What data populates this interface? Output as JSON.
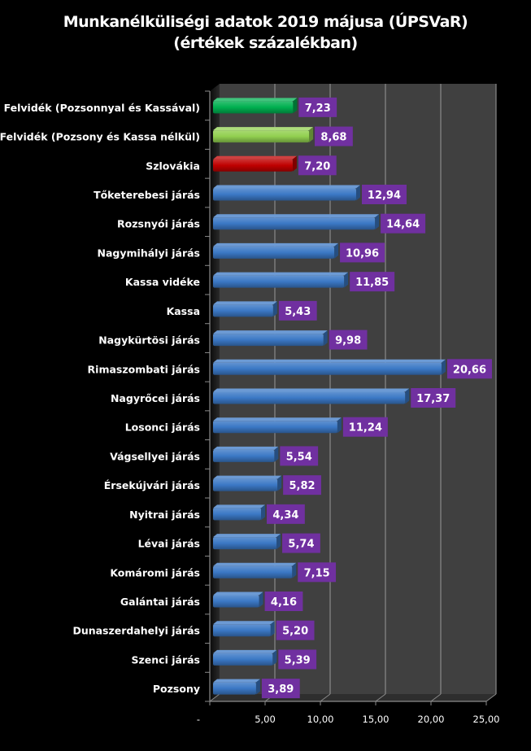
{
  "chart_data": {
    "type": "bar",
    "orientation": "horizontal",
    "style": "3d-clustered-bar",
    "title": "Munkanélküliségi adatok 2019 májusa (ÚPSVaR)",
    "subtitle": "(értékek százalékban)",
    "xlabel": "",
    "ylabel": "",
    "xlim": [
      0,
      25
    ],
    "x_ticks": [
      0,
      5,
      10,
      15,
      20,
      25
    ],
    "x_tick_labels": [
      "-",
      "5,00",
      "10,00",
      "15,00",
      "20,00",
      "25,00"
    ],
    "grid": true,
    "legend": "none",
    "categories": [
      "Felvidék (Pozsonnyal és Kassával)",
      "Felvidék (Pozsony és Kassa nélkül)",
      "Szlovákia",
      "Tőketerebesi járás",
      "Rozsnyói járás",
      "Nagymihályi járás",
      "Kassa vidéke",
      "Kassa",
      "Nagykürtösi járás",
      "Rimaszombati járás",
      "Nagyrőcei járás",
      "Losonci járás",
      "Vágsellyei járás",
      "Érsekújvári járás",
      "Nyitrai járás",
      "Lévai járás",
      "Komáromi járás",
      "Galántai járás",
      "Dunaszerdahelyi járás",
      "Szenci járás",
      "Pozsony"
    ],
    "values": [
      7.23,
      8.68,
      7.2,
      12.94,
      14.64,
      10.96,
      11.85,
      5.43,
      9.98,
      20.66,
      17.37,
      11.24,
      5.54,
      5.82,
      4.34,
      5.74,
      7.15,
      4.16,
      5.2,
      5.39,
      3.89
    ],
    "value_labels": [
      "7,23",
      "8,68",
      "7,20",
      "12,94",
      "14,64",
      "10,96",
      "11,85",
      "5,43",
      "9,98",
      "20,66",
      "17,37",
      "11,24",
      "5,54",
      "5,82",
      "4,34",
      "5,74",
      "7,15",
      "4,16",
      "5,20",
      "5,39",
      "3,89"
    ],
    "bar_colors": [
      "#00b050",
      "#92d050",
      "#c00000",
      "#3b78c5",
      "#3b78c5",
      "#3b78c5",
      "#3b78c5",
      "#3b78c5",
      "#3b78c5",
      "#3b78c5",
      "#3b78c5",
      "#3b78c5",
      "#3b78c5",
      "#3b78c5",
      "#3b78c5",
      "#3b78c5",
      "#3b78c5",
      "#3b78c5",
      "#3b78c5",
      "#3b78c5",
      "#3b78c5"
    ],
    "label_background": "#7030a0",
    "plot_background": "#404040",
    "background": "#000000"
  }
}
